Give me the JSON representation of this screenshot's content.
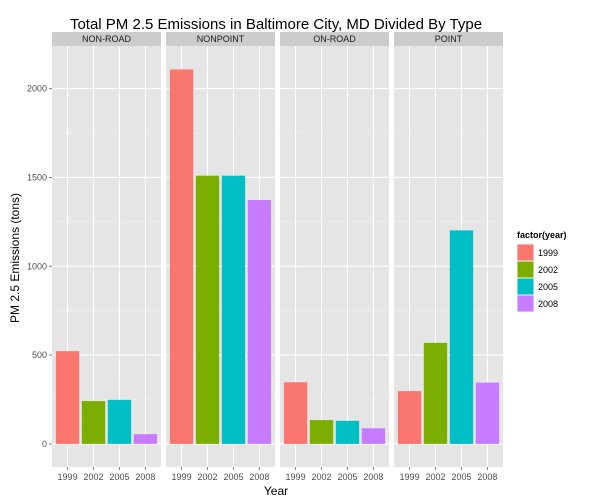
{
  "chart_data": {
    "type": "bar",
    "title": "Total PM 2.5 Emissions in Baltimore City, MD Divided By Type",
    "xlabel": "Year",
    "ylabel": "PM 2.5 Emissions (tons)",
    "facet_by": "type",
    "facets": [
      "NON-ROAD",
      "NONPOINT",
      "ON-ROAD",
      "POINT"
    ],
    "categories": [
      "1999",
      "2002",
      "2005",
      "2008"
    ],
    "panels": [
      {
        "facet": "NON-ROAD",
        "values": [
          522,
          241,
          248,
          55
        ]
      },
      {
        "facet": "NONPOINT",
        "values": [
          2108,
          1510,
          1510,
          1373
        ]
      },
      {
        "facet": "ON-ROAD",
        "values": [
          347,
          134,
          130,
          88
        ]
      },
      {
        "facet": "POINT",
        "values": [
          297,
          569,
          1202,
          345
        ]
      }
    ],
    "ylim": [
      -130,
      2240
    ],
    "yticks": [
      "0",
      "500",
      "1000",
      "1500",
      "2000"
    ],
    "grid": true,
    "legend": {
      "title": "factor(year)",
      "position": "right",
      "entries": [
        "1999",
        "2002",
        "2005",
        "2008"
      ],
      "colors": [
        "#F8766D",
        "#7CAE00",
        "#00BFC4",
        "#C77CFF"
      ]
    },
    "colors": {
      "panel_background": "#E5E5E5",
      "strip_background": "#CCCCCC",
      "grid_major": "#FFFFFF",
      "grid_minor": "#F2F2F2"
    }
  }
}
